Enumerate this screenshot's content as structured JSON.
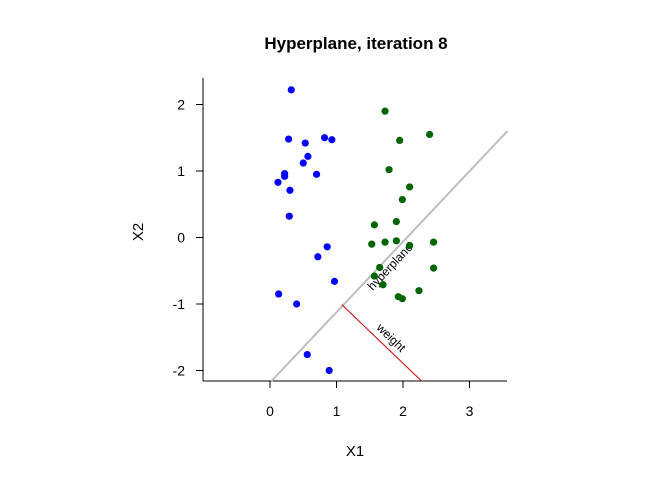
{
  "chart_data": {
    "type": "scatter",
    "title": "Hyperplane, iteration  8",
    "xlabel": "X1",
    "ylabel": "X2",
    "xlim": [
      -0.9,
      3.57
    ],
    "ylim": [
      -2.16,
      2.4
    ],
    "xticks": [
      0,
      1,
      2,
      3
    ],
    "yticks": [
      -2,
      -1,
      0,
      1,
      2
    ],
    "grid": false,
    "series": [
      {
        "color": "#0000ff",
        "points": [
          [
            0.32,
            2.22
          ],
          [
            0.28,
            1.48
          ],
          [
            0.53,
            1.42
          ],
          [
            0.82,
            1.5
          ],
          [
            0.93,
            1.47
          ],
          [
            0.57,
            1.22
          ],
          [
            0.5,
            1.12
          ],
          [
            0.22,
            0.96
          ],
          [
            0.22,
            0.92
          ],
          [
            0.7,
            0.95
          ],
          [
            0.12,
            0.83
          ],
          [
            0.3,
            0.71
          ],
          [
            0.29,
            0.32
          ],
          [
            0.86,
            -0.14
          ],
          [
            0.72,
            -0.29
          ],
          [
            0.97,
            -0.66
          ],
          [
            0.13,
            -0.85
          ],
          [
            0.4,
            -1.0
          ],
          [
            0.56,
            -1.76
          ],
          [
            0.89,
            -2.0
          ]
        ]
      },
      {
        "color": "#006400",
        "points": [
          [
            1.73,
            1.9
          ],
          [
            2.4,
            1.55
          ],
          [
            1.95,
            1.46
          ],
          [
            1.79,
            1.02
          ],
          [
            2.1,
            0.76
          ],
          [
            1.99,
            0.57
          ],
          [
            1.9,
            0.24
          ],
          [
            1.57,
            0.19
          ],
          [
            1.53,
            -0.1
          ],
          [
            1.73,
            -0.07
          ],
          [
            1.9,
            -0.05
          ],
          [
            2.46,
            -0.07
          ],
          [
            2.1,
            -0.12
          ],
          [
            1.65,
            -0.45
          ],
          [
            1.57,
            -0.58
          ],
          [
            1.7,
            -0.71
          ],
          [
            2.24,
            -0.8
          ],
          [
            1.93,
            -0.89
          ],
          [
            1.99,
            -0.92
          ],
          [
            2.46,
            -0.46
          ]
        ]
      }
    ],
    "hyperplane": {
      "color": "#bebebe",
      "label": "hyperplane",
      "from": [
        0.02,
        -2.16
      ],
      "to": [
        3.57,
        1.6
      ]
    },
    "weight": {
      "color": "#cc0000",
      "label": "weight",
      "from": [
        1.08,
        -1.01
      ],
      "to": [
        2.28,
        -2.16
      ]
    }
  }
}
